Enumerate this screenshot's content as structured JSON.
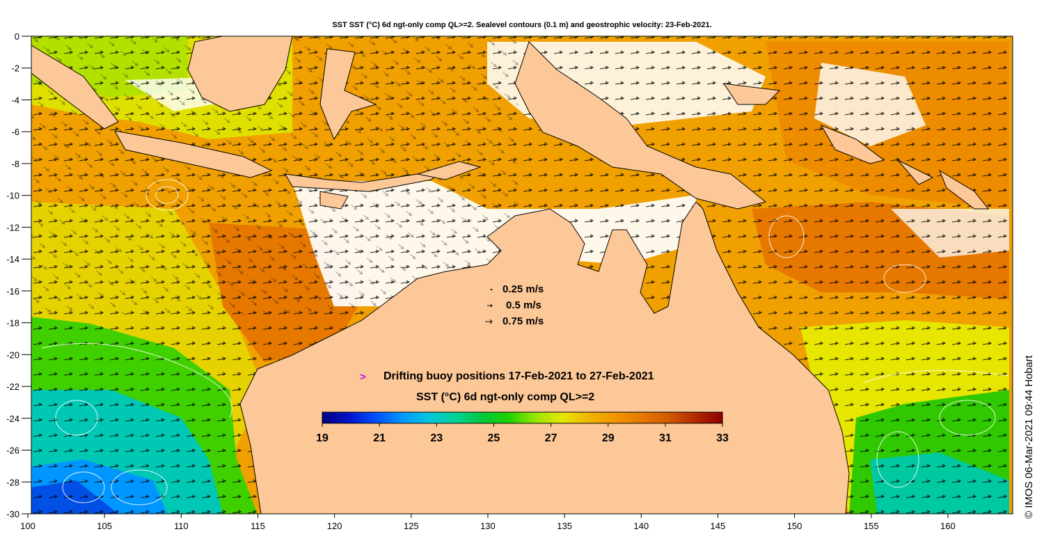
{
  "title": "SST SST (°C) 6d ngt-only comp QL>=2. Sealevel contours (0.1 m) and geostrophic velocity: 23-Feb-2021.",
  "credit": "© IMOS 06-Mar-2021 09:44 Hobart",
  "axes": {
    "x_ticks": [
      "100",
      "105",
      "110",
      "115",
      "120",
      "125",
      "130",
      "135",
      "140",
      "145",
      "150",
      "155",
      "160"
    ],
    "y_ticks": [
      "0",
      "-2",
      "-4",
      "-6",
      "-8",
      "-10",
      "-12",
      "-14",
      "-16",
      "-18",
      "-20",
      "-22",
      "-24",
      "-26",
      "-28",
      "-30"
    ],
    "lon_range": [
      100,
      164
    ],
    "lat_range": [
      -30,
      0
    ]
  },
  "velocity_legend": [
    {
      "label": "0.25 m/s",
      "speed": 0.25
    },
    {
      "label": "0.5 m/s",
      "speed": 0.5
    },
    {
      "label": "0.75 m/s",
      "speed": 0.75
    }
  ],
  "buoy_legend": {
    "symbol": ">",
    "label": "Drifting buoy positions 17-Feb-2021 to 27-Feb-2021",
    "color": "#d000ff"
  },
  "colorbar": {
    "title": "SST (°C) 6d ngt-only comp QL>=2",
    "min": 19,
    "max": 33,
    "tick_labels": [
      "19",
      "21",
      "23",
      "25",
      "27",
      "29",
      "31",
      "33"
    ],
    "colors": [
      "#00007f",
      "#0014c8",
      "#0050ff",
      "#0096ff",
      "#00c8dc",
      "#00d296",
      "#00c83c",
      "#1ed200",
      "#9be600",
      "#e6e600",
      "#f0b400",
      "#f09600",
      "#e67800",
      "#d25a00",
      "#b42800",
      "#8c0000"
    ]
  },
  "colors": {
    "land": "#fdc898",
    "cloud": "#ffffff",
    "vector": "#000000",
    "contour": "#ffffff"
  }
}
